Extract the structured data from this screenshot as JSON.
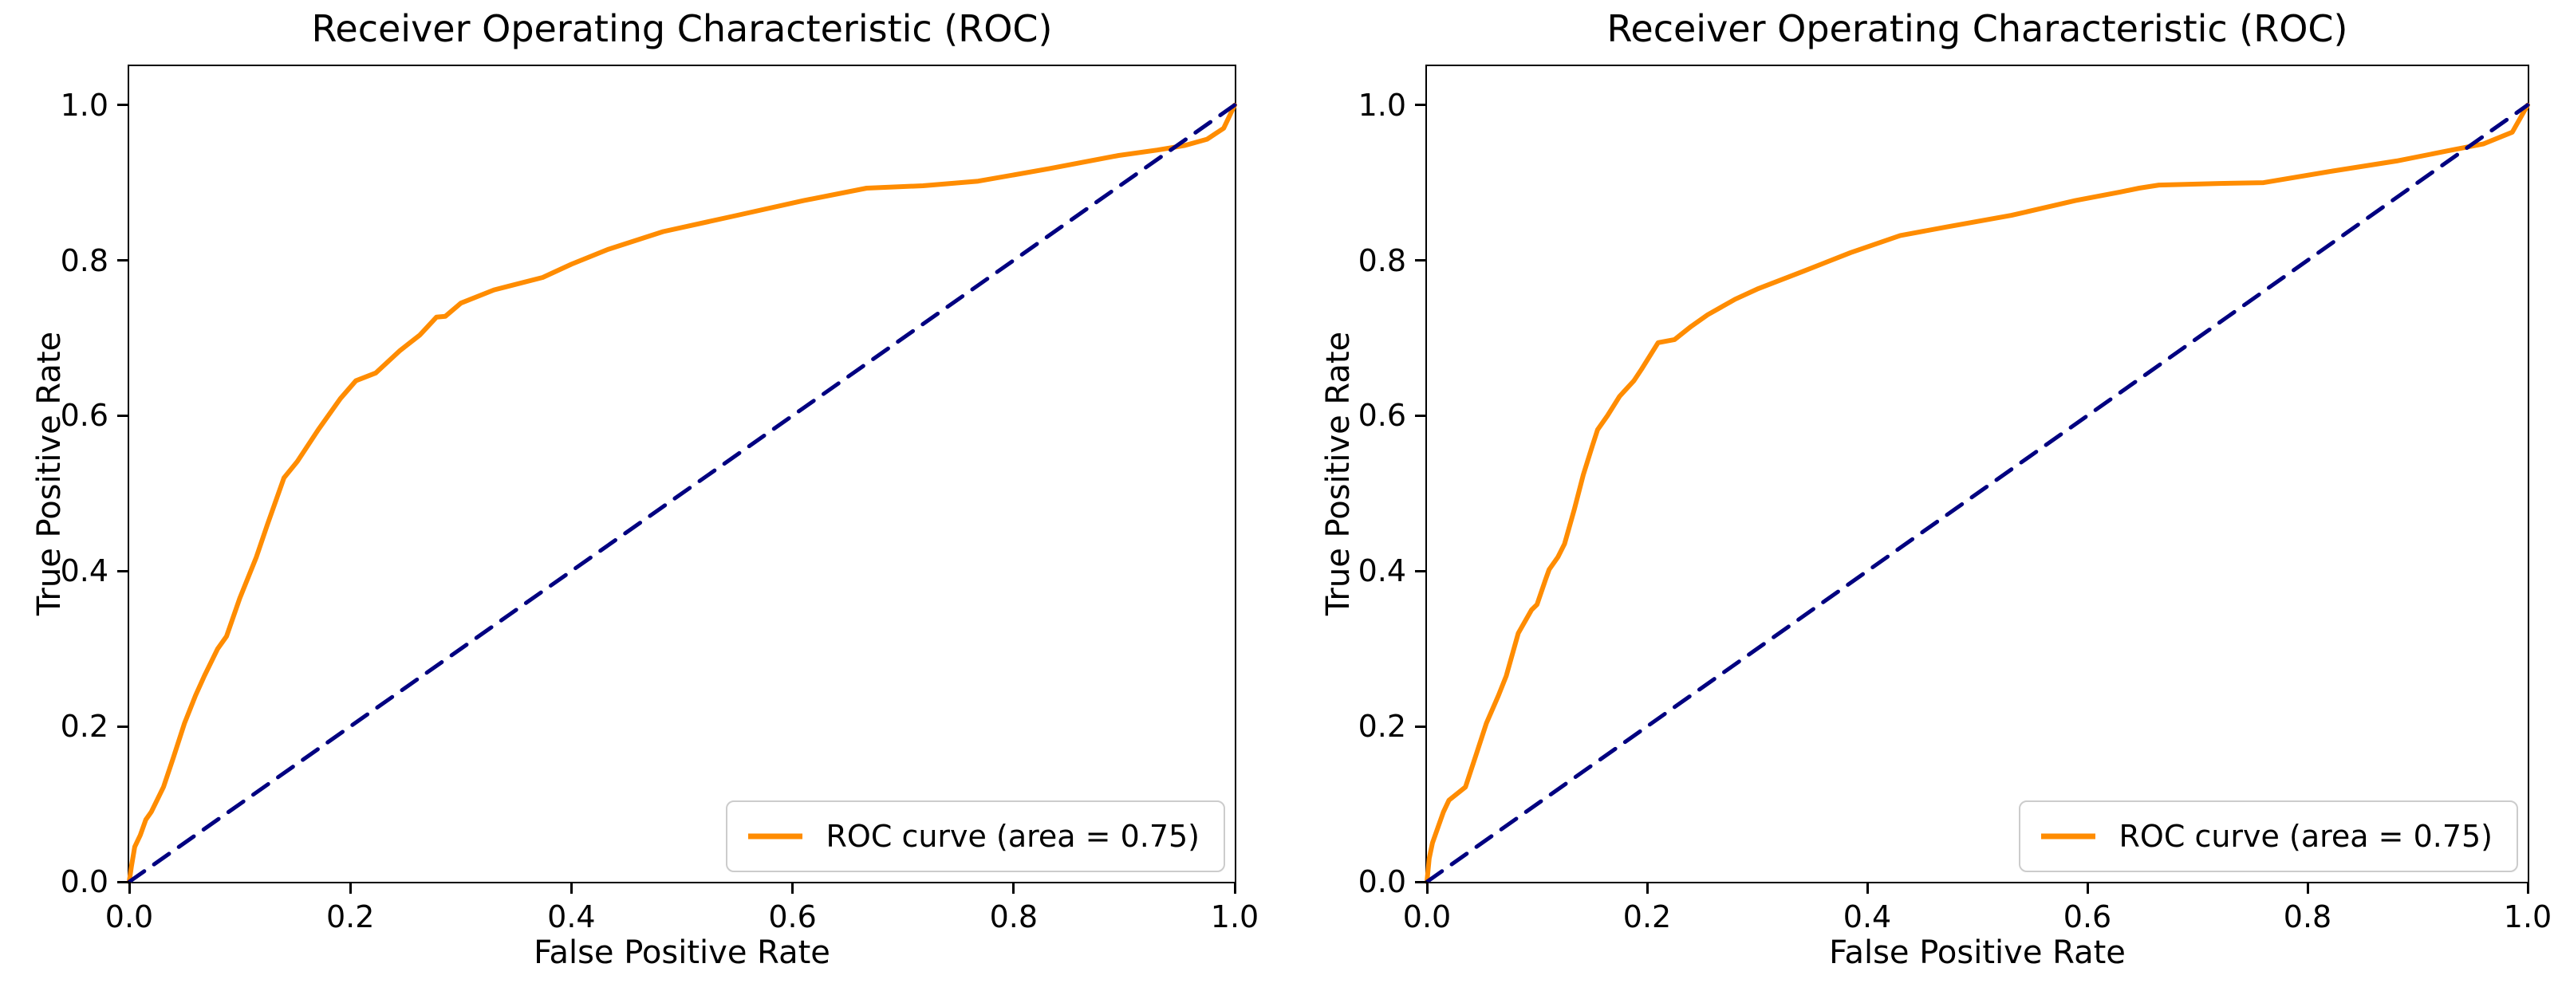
{
  "figure": {
    "background": "#ffffff",
    "colors": {
      "roc_curve": "#ff8c00",
      "diagonal": "#000080",
      "spine": "#000000",
      "text": "#000000",
      "legend_border": "#cccccc"
    }
  },
  "chart_data": [
    {
      "type": "line",
      "title": "Receiver Operating Characteristic (ROC)",
      "xlabel": "False Positive Rate",
      "ylabel": "True Positive Rate",
      "xlim": [
        0,
        1.0
      ],
      "ylim": [
        0,
        1.05
      ],
      "grid": false,
      "x_ticks": [
        0,
        0.2,
        0.4,
        0.6,
        0.8,
        1.0
      ],
      "x_tick_labels": [
        "0.0",
        "0.2",
        "0.4",
        "0.6",
        "0.8",
        "1.0"
      ],
      "y_ticks": [
        0,
        0.2,
        0.4,
        0.6,
        0.8,
        1.0
      ],
      "y_tick_labels": [
        "0.0",
        "0.2",
        "0.4",
        "0.6",
        "0.8",
        "1.0"
      ],
      "legend": {
        "label": "ROC curve (area = 0.75)",
        "position": "lower right"
      },
      "auc": 0.75,
      "series": [
        {
          "name": "ROC curve (area = 0.75)",
          "style": "solid",
          "color": "#ff8c00",
          "points": [
            [
              0,
              0
            ],
            [
              0.002,
              0.02
            ],
            [
              0.005,
              0.045
            ],
            [
              0.01,
              0.06
            ],
            [
              0.015,
              0.08
            ],
            [
              0.02,
              0.09
            ],
            [
              0.031,
              0.122
            ],
            [
              0.04,
              0.16
            ],
            [
              0.05,
              0.204
            ],
            [
              0.06,
              0.24
            ],
            [
              0.068,
              0.265
            ],
            [
              0.08,
              0.3
            ],
            [
              0.088,
              0.316
            ],
            [
              0.1,
              0.365
            ],
            [
              0.115,
              0.418
            ],
            [
              0.125,
              0.46
            ],
            [
              0.14,
              0.52
            ],
            [
              0.152,
              0.541
            ],
            [
              0.171,
              0.582
            ],
            [
              0.191,
              0.622
            ],
            [
              0.205,
              0.645
            ],
            [
              0.223,
              0.655
            ],
            [
              0.245,
              0.684
            ],
            [
              0.263,
              0.704
            ],
            [
              0.278,
              0.727
            ],
            [
              0.286,
              0.728
            ],
            [
              0.3,
              0.745
            ],
            [
              0.33,
              0.762
            ],
            [
              0.374,
              0.778
            ],
            [
              0.4,
              0.795
            ],
            [
              0.433,
              0.814
            ],
            [
              0.483,
              0.837
            ],
            [
              0.547,
              0.857
            ],
            [
              0.61,
              0.877
            ],
            [
              0.667,
              0.893
            ],
            [
              0.718,
              0.896
            ],
            [
              0.768,
              0.902
            ],
            [
              0.832,
              0.918
            ],
            [
              0.895,
              0.935
            ],
            [
              0.93,
              0.942
            ],
            [
              0.955,
              0.948
            ],
            [
              0.975,
              0.956
            ],
            [
              0.99,
              0.97
            ],
            [
              1,
              1
            ]
          ]
        },
        {
          "name": "chance-diagonal",
          "style": "dashed",
          "color": "#000080",
          "points": [
            [
              0,
              0
            ],
            [
              1,
              1
            ]
          ]
        }
      ]
    },
    {
      "type": "line",
      "title": "Receiver Operating Characteristic (ROC)",
      "xlabel": "False Positive Rate",
      "ylabel": "True Positive Rate",
      "xlim": [
        0,
        1.0
      ],
      "ylim": [
        0,
        1.05
      ],
      "grid": false,
      "x_ticks": [
        0,
        0.2,
        0.4,
        0.6,
        0.8,
        1.0
      ],
      "x_tick_labels": [
        "0.0",
        "0.2",
        "0.4",
        "0.6",
        "0.8",
        "1.0"
      ],
      "y_ticks": [
        0,
        0.2,
        0.4,
        0.6,
        0.8,
        1.0
      ],
      "y_tick_labels": [
        "0.0",
        "0.2",
        "0.4",
        "0.6",
        "0.8",
        "1.0"
      ],
      "legend": {
        "label": "ROC curve (area = 0.75)",
        "position": "lower right"
      },
      "auc": 0.75,
      "series": [
        {
          "name": "ROC curve (area = 0.75)",
          "style": "solid",
          "color": "#ff8c00",
          "points": [
            [
              0,
              0
            ],
            [
              0.002,
              0.03
            ],
            [
              0.005,
              0.05
            ],
            [
              0.01,
              0.07
            ],
            [
              0.015,
              0.09
            ],
            [
              0.02,
              0.105
            ],
            [
              0.035,
              0.122
            ],
            [
              0.045,
              0.165
            ],
            [
              0.054,
              0.204
            ],
            [
              0.065,
              0.24
            ],
            [
              0.072,
              0.265
            ],
            [
              0.083,
              0.32
            ],
            [
              0.095,
              0.35
            ],
            [
              0.1,
              0.357
            ],
            [
              0.108,
              0.39
            ],
            [
              0.111,
              0.402
            ],
            [
              0.119,
              0.418
            ],
            [
              0.125,
              0.435
            ],
            [
              0.134,
              0.48
            ],
            [
              0.142,
              0.524
            ],
            [
              0.15,
              0.56
            ],
            [
              0.155,
              0.582
            ],
            [
              0.164,
              0.6
            ],
            [
              0.175,
              0.625
            ],
            [
              0.188,
              0.645
            ],
            [
              0.195,
              0.66
            ],
            [
              0.21,
              0.694
            ],
            [
              0.225,
              0.698
            ],
            [
              0.24,
              0.715
            ],
            [
              0.255,
              0.73
            ],
            [
              0.28,
              0.75
            ],
            [
              0.3,
              0.763
            ],
            [
              0.342,
              0.786
            ],
            [
              0.385,
              0.81
            ],
            [
              0.43,
              0.832
            ],
            [
              0.472,
              0.843
            ],
            [
              0.531,
              0.858
            ],
            [
              0.589,
              0.877
            ],
            [
              0.63,
              0.888
            ],
            [
              0.647,
              0.893
            ],
            [
              0.665,
              0.897
            ],
            [
              0.72,
              0.899
            ],
            [
              0.76,
              0.9
            ],
            [
              0.823,
              0.915
            ],
            [
              0.881,
              0.928
            ],
            [
              0.931,
              0.942
            ],
            [
              0.96,
              0.95
            ],
            [
              0.986,
              0.965
            ],
            [
              1,
              1
            ]
          ]
        },
        {
          "name": "chance-diagonal",
          "style": "dashed",
          "color": "#000080",
          "points": [
            [
              0,
              0
            ],
            [
              1,
              1
            ]
          ]
        }
      ]
    }
  ]
}
